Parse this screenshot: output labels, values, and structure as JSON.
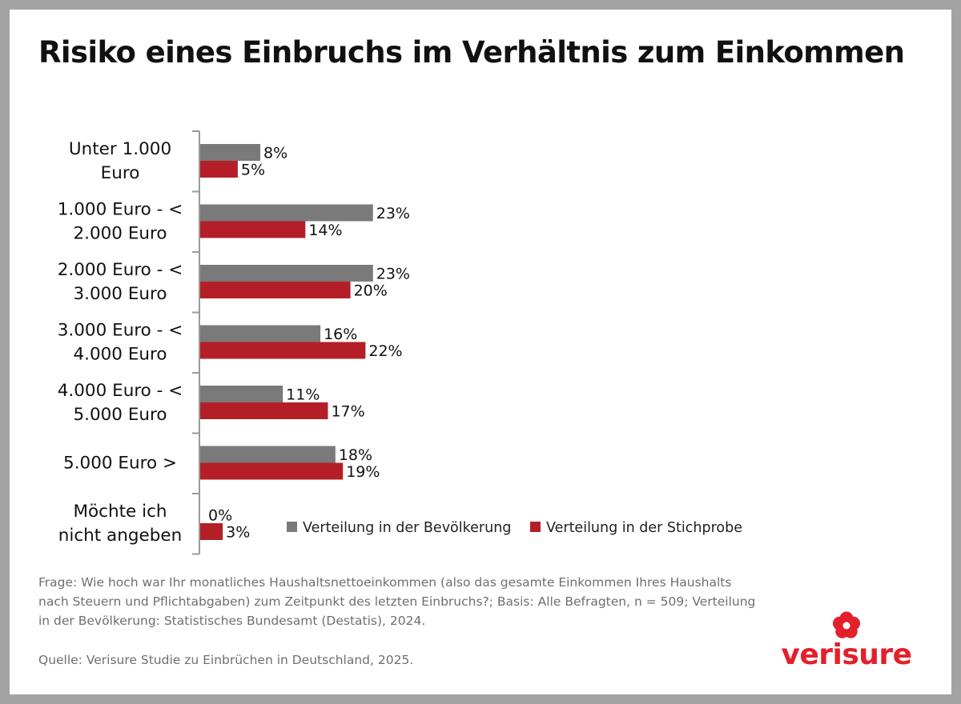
{
  "title": "Risiko eines Einbruchs im Verhältnis zum Einkommen",
  "chart_data": {
    "type": "bar",
    "orientation": "horizontal",
    "categories": [
      [
        "Unter 1.000",
        "Euro"
      ],
      [
        "1.000 Euro - <",
        "2.000 Euro"
      ],
      [
        "2.000 Euro - <",
        "3.000 Euro"
      ],
      [
        "3.000 Euro - <",
        "4.000 Euro"
      ],
      [
        "4.000 Euro - <",
        "5.000 Euro"
      ],
      [
        "5.000 Euro >"
      ],
      [
        "Möchte ich",
        "nicht angeben"
      ]
    ],
    "series": [
      {
        "name": "Verteilung in der Bevölkerung",
        "color": "#7a7a7a",
        "values": [
          8,
          23,
          23,
          16,
          11,
          18,
          0
        ],
        "labels": [
          "8%",
          "23%",
          "23%",
          "16%",
          "11%",
          "18%",
          "0%"
        ]
      },
      {
        "name": "Verteilung in der Stichprobe",
        "color": "#b41f27",
        "values": [
          5,
          14,
          20,
          22,
          17,
          19,
          3
        ],
        "labels": [
          "5%",
          "14%",
          "20%",
          "22%",
          "17%",
          "19%",
          "3%"
        ]
      }
    ],
    "value_unit": "%",
    "xlim": [
      0,
      25
    ],
    "grid": false,
    "legend_position": "bottom-right"
  },
  "note": "Frage: Wie hoch war Ihr monatliches Haushaltsnettoeinkommen (also das gesamte Einkommen Ihres Haushalts nach Steuern und Pflichtabgaben) zum Zeitpunkt des letzten Einbruchs?; Basis: Alle Befragten, n = 509; Verteilung in der Bevölkerung: Statistisches Bundesamt (Destatis), 2024.",
  "source": "Quelle: Verisure Studie zu Einbrüchen in Deutschland, 2025.",
  "logo": {
    "text": "verisure",
    "color": "#e3202b",
    "icon": "flower-logo-icon"
  }
}
